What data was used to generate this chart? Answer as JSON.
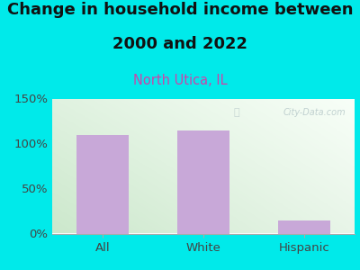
{
  "title_line1": "Change in household income between",
  "title_line2": "2000 and 2022",
  "subtitle": "North Utica, IL",
  "categories": [
    "All",
    "White",
    "Hispanic"
  ],
  "values": [
    110,
    115,
    15
  ],
  "bar_color": "#c8a8d8",
  "fig_bg_color": "#00eaea",
  "plot_bg_grad_topleft": "#e8f5e0",
  "plot_bg_grad_topright": "#f0f8f8",
  "plot_bg_grad_bottom": "#d8eed0",
  "ylim": [
    0,
    150
  ],
  "yticks": [
    0,
    50,
    100,
    150
  ],
  "ytick_labels": [
    "0%",
    "50%",
    "100%",
    "150%"
  ],
  "title_fontsize": 13,
  "subtitle_fontsize": 10.5,
  "subtitle_color": "#cc44aa",
  "title_color": "#111111",
  "tick_label_fontsize": 9.5,
  "watermark_text": "City-Data.com",
  "watermark_color": "#bbcccc",
  "axis_color": "#aaaaaa"
}
